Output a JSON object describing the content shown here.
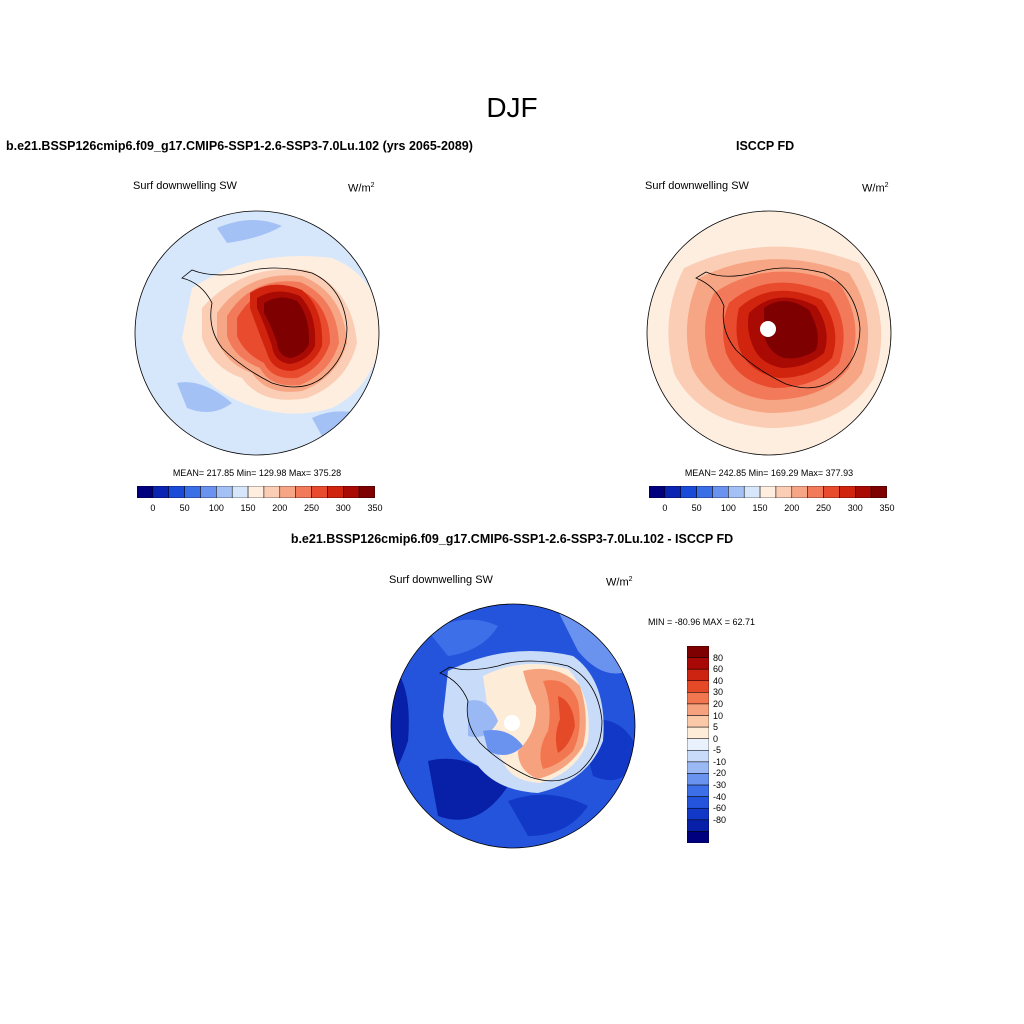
{
  "figure": {
    "season": "DJF",
    "panels": {
      "model": {
        "title": "b.e21.BSSP126cmip6.f09_g17.CMIP6-SSP1-2.6-SSP3-7.0Lu.102 (yrs 2065-2089)",
        "variable": "Surf downwelling SW",
        "units_base": "W/m",
        "units_exp": "2",
        "stats": "MEAN= 217.85  Min= 129.98  Max= 375.28"
      },
      "obs": {
        "title": "ISCCP FD",
        "variable": "Surf downwelling SW",
        "units_base": "W/m",
        "units_exp": "2",
        "stats": "MEAN= 242.85  Min= 169.29  Max= 377.93"
      },
      "diff": {
        "title": "b.e21.BSSP126cmip6.f09_g17.CMIP6-SSP1-2.6-SSP3-7.0Lu.102 - ISCCP FD",
        "variable": "Surf downwelling SW",
        "units_base": "W/m",
        "units_exp": "2",
        "minmax": "MIN = -80.96 MAX =  62.71"
      }
    },
    "colorbar_abs": {
      "colors": [
        "#00007f",
        "#0b24b2",
        "#1a4ad8",
        "#3b6fe8",
        "#6a93f0",
        "#a4c1f6",
        "#d6e6fb",
        "#fdeee0",
        "#fbcdb4",
        "#f7a685",
        "#f27a5a",
        "#e84b2e",
        "#d1240f",
        "#a90a04",
        "#7f0000"
      ],
      "labels": [
        "0",
        "50",
        "100",
        "150",
        "200",
        "250",
        "300",
        "350"
      ]
    },
    "colorbar_diff": {
      "colors": [
        "#00007f",
        "#0820a8",
        "#1238c8",
        "#2454dc",
        "#3c6fe8",
        "#6a93f0",
        "#9ab8f4",
        "#c8dbf9",
        "#e8f1fc",
        "#fdecd8",
        "#fbc9a8",
        "#f7a27e",
        "#f27650",
        "#e54a28",
        "#cc2410",
        "#a80806",
        "#7f0000"
      ],
      "labels": [
        "80",
        "60",
        "40",
        "30",
        "20",
        "10",
        "5",
        "0",
        "-5",
        "-10",
        "-20",
        "-30",
        "-40",
        "-60",
        "-80"
      ]
    }
  }
}
